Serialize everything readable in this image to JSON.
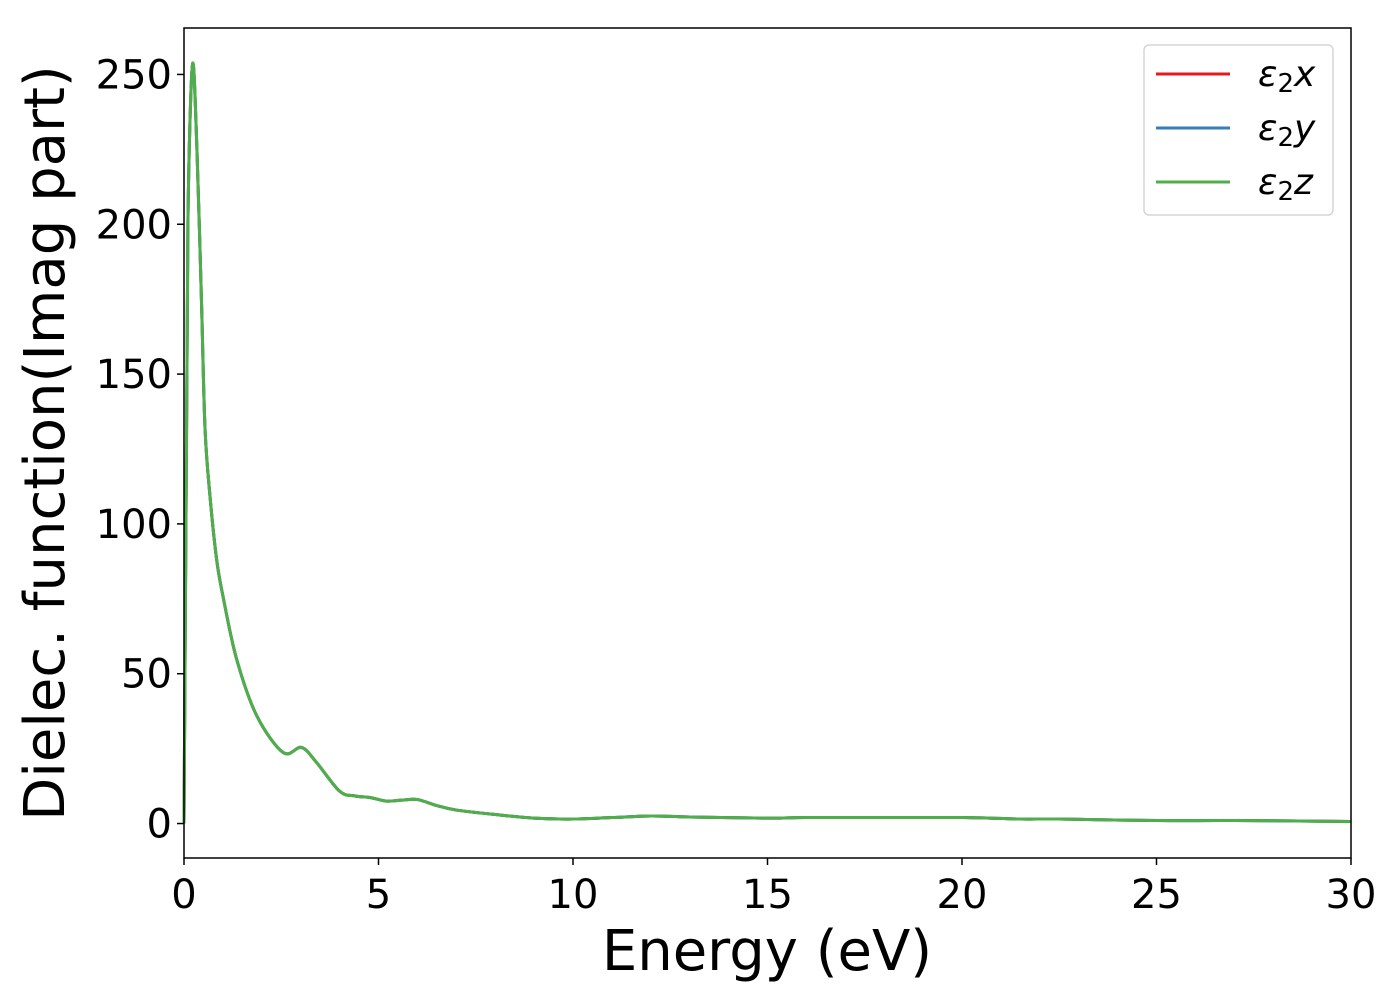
{
  "chart_data": {
    "type": "line",
    "title": "",
    "xlabel": "Energy (eV)",
    "ylabel": "Dielec. function(Imag part)",
    "xlim": [
      0,
      30
    ],
    "ylim": [
      -11.5,
      265.5
    ],
    "xticks": [
      0,
      5,
      10,
      15,
      20,
      25,
      30
    ],
    "yticks": [
      0,
      50,
      100,
      150,
      200,
      250
    ],
    "xtick_labels": [
      "0",
      "5",
      "10",
      "15",
      "20",
      "25",
      "30"
    ],
    "ytick_labels": [
      "0",
      "50",
      "100",
      "150",
      "200",
      "250"
    ],
    "grid": false,
    "legend_position": "top-right",
    "x": [
      0,
      0.07,
      0.11,
      0.22,
      0.33,
      0.45,
      0.54,
      0.67,
      0.84,
      1.0,
      1.35,
      1.87,
      2.55,
      3.02,
      3.4,
      4.0,
      4.4,
      4.78,
      5.2,
      5.6,
      6.0,
      6.5,
      7.0,
      8.0,
      9.0,
      10.0,
      11.0,
      12.0,
      13.0,
      15.0,
      16.0,
      18.0,
      20.0,
      21.5,
      22.5,
      25.0,
      27.0,
      30.0
    ],
    "series": [
      {
        "name": "ε₂x",
        "label_base": "ε",
        "label_sub": "2",
        "label_axis": "x",
        "color": "#e41a1c",
        "values": [
          0,
          139,
          209,
          253.5,
          226,
          174,
          132,
          109,
          88,
          76,
          55,
          36,
          23.7,
          25.4,
          20.5,
          10.8,
          9.2,
          8.7,
          7.5,
          7.8,
          8.0,
          6.0,
          4.5,
          3.0,
          1.8,
          1.5,
          2.0,
          2.5,
          2.2,
          1.8,
          2.0,
          2.0,
          2.0,
          1.5,
          1.5,
          1.0,
          1.0,
          0.7
        ]
      },
      {
        "name": "ε₂y",
        "label_base": "ε",
        "label_sub": "2",
        "label_axis": "y",
        "color": "#377eb8",
        "values": [
          0,
          139,
          209,
          253.5,
          226,
          174,
          132,
          109,
          88,
          76,
          55,
          36,
          23.7,
          25.4,
          20.5,
          10.8,
          9.2,
          8.7,
          7.5,
          7.8,
          8.0,
          6.0,
          4.5,
          3.0,
          1.8,
          1.5,
          2.0,
          2.5,
          2.2,
          1.8,
          2.0,
          2.0,
          2.0,
          1.5,
          1.5,
          1.0,
          1.0,
          0.7
        ]
      },
      {
        "name": "ε₂z",
        "label_base": "ε",
        "label_sub": "2",
        "label_axis": "z",
        "color": "#4daf4a",
        "values": [
          0,
          139,
          209,
          253.5,
          226,
          174,
          132,
          109,
          88,
          76,
          55,
          36,
          23.7,
          25.4,
          20.5,
          10.8,
          9.2,
          8.7,
          7.5,
          7.8,
          8.0,
          6.0,
          4.5,
          3.0,
          1.8,
          1.5,
          2.0,
          2.5,
          2.2,
          1.8,
          2.0,
          2.0,
          2.0,
          1.5,
          1.5,
          1.0,
          1.0,
          0.7
        ]
      }
    ]
  }
}
